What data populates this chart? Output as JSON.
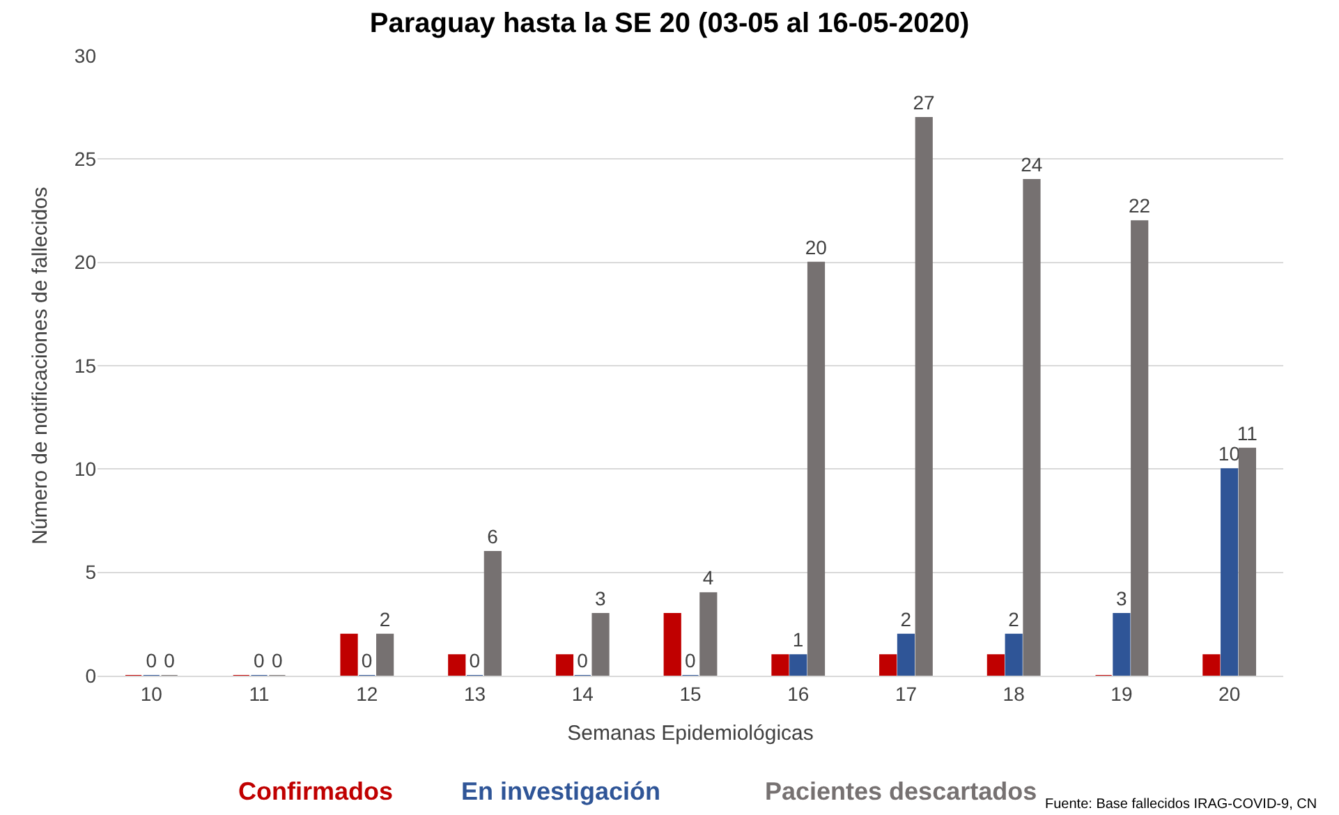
{
  "chart_data": {
    "type": "bar",
    "title": "Paraguay hasta la SE 20 (03-05 al 16-05-2020)",
    "xlabel": "Semanas Epidemiológicas",
    "ylabel": "Número de notificaciones de fallecidos",
    "categories": [
      "10",
      "11",
      "12",
      "13",
      "14",
      "15",
      "16",
      "17",
      "18",
      "19",
      "20"
    ],
    "series": [
      {
        "name": "Confirmados",
        "color": "#c00000",
        "values": [
          0,
          0,
          2,
          1,
          1,
          3,
          1,
          1,
          1,
          0,
          1
        ]
      },
      {
        "name": "En investigación",
        "color": "#2f5597",
        "values": [
          0,
          0,
          0,
          0,
          0,
          0,
          1,
          2,
          2,
          3,
          10
        ],
        "value_labels": [
          "0",
          "0",
          "0",
          "0",
          "0",
          "0",
          "1",
          "2",
          "2",
          "3",
          "10"
        ]
      },
      {
        "name": "Pacientes descartados",
        "color": "#767171",
        "values": [
          0,
          0,
          2,
          6,
          3,
          4,
          20,
          27,
          24,
          22,
          11
        ],
        "value_labels": [
          "0",
          "0",
          "2",
          "6",
          "3",
          "4",
          "20",
          "27",
          "24",
          "22",
          "11"
        ]
      }
    ],
    "ylim": [
      0,
      30
    ],
    "yticks": [
      0,
      5,
      10,
      15,
      20,
      25,
      30
    ],
    "grid": "y",
    "legend": "bottom",
    "annotations": [
      "Fuente: Base fallecidos IRAG-COVID-9, CN"
    ]
  }
}
